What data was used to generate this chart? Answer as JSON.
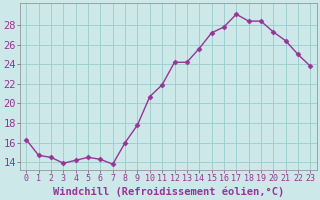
{
  "x": [
    0,
    1,
    2,
    3,
    4,
    5,
    6,
    7,
    8,
    9,
    10,
    11,
    12,
    13,
    14,
    15,
    16,
    17,
    18,
    19,
    20,
    21,
    22,
    23
  ],
  "y": [
    16.3,
    14.7,
    14.5,
    13.9,
    14.2,
    14.5,
    14.3,
    13.8,
    16.0,
    17.8,
    20.7,
    21.9,
    24.2,
    24.2,
    25.6,
    27.2,
    27.8,
    29.1,
    28.4,
    28.4,
    27.3,
    26.4,
    25.0,
    23.8
  ],
  "line_color": "#993399",
  "marker": "D",
  "marker_size": 2.5,
  "bg_color": "#cce8e8",
  "grid_color": "#99cccc",
  "xlabel": "Windchill (Refroidissement éolien,°C)",
  "xlabel_color": "#993399",
  "ylabel_ticks": [
    14,
    16,
    18,
    20,
    22,
    24,
    26,
    28
  ],
  "xlim": [
    -0.5,
    23.5
  ],
  "ylim": [
    13.2,
    30.2
  ],
  "tick_color": "#993399",
  "ytick_fontsize": 7.5,
  "xtick_fontsize": 6.0,
  "xlabel_fontsize": 7.5,
  "linewidth": 1.0
}
